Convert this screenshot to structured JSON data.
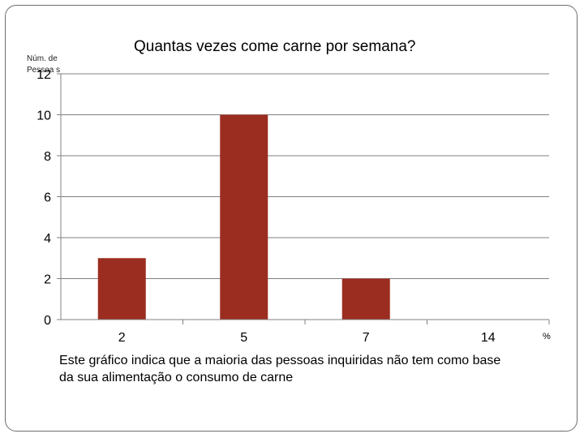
{
  "chart_data": {
    "type": "bar",
    "title": "Quantas vezes come carne por semana?",
    "ylabel": "Núm. de Pessoa s",
    "xlabel": "%",
    "categories": [
      "2",
      "5",
      "7",
      "14"
    ],
    "values": [
      3,
      10,
      2,
      0
    ],
    "ylim": [
      0,
      12
    ],
    "yticks": [
      0,
      2,
      4,
      6,
      8,
      10,
      12
    ],
    "grid": true,
    "legend": "none",
    "bar_color": "#9b2d20",
    "grid_color": "#808080"
  },
  "caption": "Este gráfico indica que a maioria das pessoas inquiridas não tem como  base da sua alimentação o consumo de carne"
}
